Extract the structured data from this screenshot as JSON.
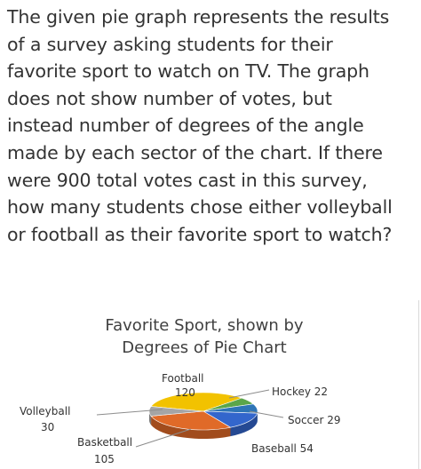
{
  "question": {
    "lines": [
      "The given pie graph represents the results",
      "of a survey asking students for their",
      "favorite sport to watch on TV. The graph",
      "does not show number of votes, but",
      "instead number of degrees of the angle",
      "made by each sector of the chart. If there",
      "were 900 total votes cast in this survey,",
      "how many students chose either volleyball",
      "or football as their favorite sport to watch?"
    ]
  },
  "chart_data": {
    "type": "pie",
    "title_lines": [
      "Favorite Sport, shown by",
      "Degrees of Pie Chart"
    ],
    "slices": [
      {
        "name": "Football",
        "value": 120,
        "color": "#f2c200"
      },
      {
        "name": "Hockey",
        "value": 22,
        "color": "#5ba64a"
      },
      {
        "name": "Soccer",
        "value": 29,
        "color": "#2e75b6"
      },
      {
        "name": "Baseball",
        "value": 54,
        "color": "#3366cc"
      },
      {
        "name": "Basketball",
        "value": 105,
        "color": "#e06a28"
      },
      {
        "name": "Volleyball",
        "value": 30,
        "color": "#a5a5a5"
      }
    ],
    "labels": {
      "football_name": "Football",
      "football_value": "120",
      "hockey": "Hockey 22",
      "soccer": "Soccer 29",
      "baseball": "Baseball 54",
      "basketball_name": "Basketball",
      "basketball_value": "105",
      "volleyball_name": "Volleyball",
      "volleyball_value": "30"
    },
    "style": "3d-pie"
  }
}
